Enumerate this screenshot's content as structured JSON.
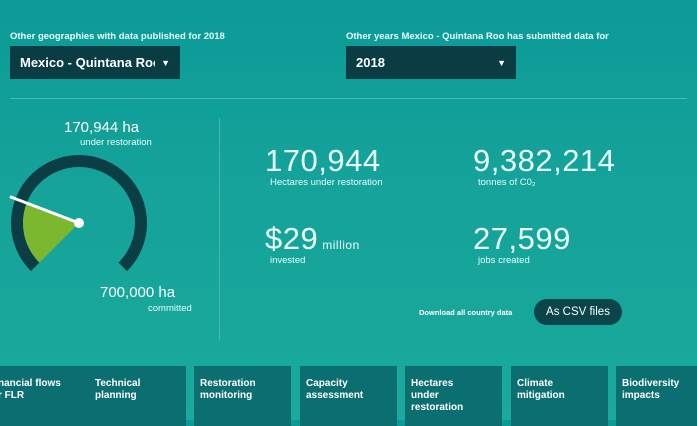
{
  "filters": {
    "geography_label": "Other geographies with data published for 2018",
    "geography_value": "Mexico - Quintana Roo",
    "years_label": "Other years Mexico - Quintana Roo has submitted data for",
    "year_value": "2018"
  },
  "gauge": {
    "restoration_value": "170,944 ha",
    "restoration_caption": "under restoration",
    "committed_value": "700,000 ha",
    "committed_caption": "committed",
    "fill_fraction": 0.244,
    "colors": {
      "track": "#0a3d44",
      "fill": "#7cb82f",
      "needle": "#ffffff"
    }
  },
  "stats": {
    "hectares_value": "170,944",
    "hectares_caption": "Hectares under restoration",
    "co2_value": "9,382,214",
    "co2_caption": "tonnes of C0₂",
    "invested_value": "$29",
    "invested_suffix": "million",
    "invested_caption": "invested",
    "jobs_value": "27,599",
    "jobs_caption": "jobs created"
  },
  "download": {
    "label": "Download all country data",
    "button": "As CSV files"
  },
  "tiles": [
    "nancial flows\nr FLR",
    "Technical\nplanning",
    "Restoration\nmonitoring",
    "Capacity\nassessment",
    "Hectares\nunder\nrestoration",
    "Climate\nmitigation",
    "Biodiversity\nimpacts"
  ],
  "colors": {
    "panel": "#093c43",
    "tile": "#0b6f72"
  }
}
